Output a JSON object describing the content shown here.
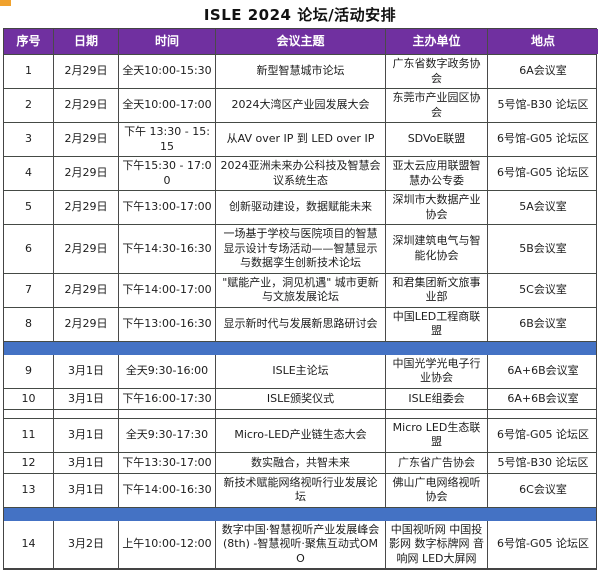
{
  "title": "ISLE 2024 论坛/活动安排",
  "colors": {
    "header_bg": "#7030A0",
    "header_text": "#FFFFFF",
    "separator_blue": "#4472C4",
    "border": "#444444",
    "corner_marker": "#F0A22E"
  },
  "table": {
    "headers": [
      "序号",
      "日期",
      "时间",
      "会议主题",
      "主办单位",
      "地点"
    ],
    "rows": [
      {
        "type": "data",
        "no": "1",
        "date": "2月29日",
        "time": "全天10:00-15:30",
        "topic": "新型智慧城市论坛",
        "organizer": "广东省数字政务协会",
        "location": "6A会议室"
      },
      {
        "type": "data",
        "no": "2",
        "date": "2月29日",
        "time": "全天10:00-17:00",
        "topic": "2024大湾区产业园发展大会",
        "organizer": "东莞市产业园区协会",
        "location": "5号馆-B30 论坛区"
      },
      {
        "type": "data",
        "no": "3",
        "date": "2月29日",
        "time": "下午 13:30 - 15:15",
        "topic": "从AV over IP 到 LED over IP",
        "organizer": "SDVoE联盟",
        "location": "6号馆-G05 论坛区"
      },
      {
        "type": "data",
        "no": "4",
        "date": "2月29日",
        "time": "下午15:30 - 17:00",
        "topic": "2024亚洲未来办公科技及智慧会议系统生态",
        "organizer": "亚太云应用联盟智慧办公专委",
        "location": "6号馆-G05 论坛区"
      },
      {
        "type": "data",
        "no": "5",
        "date": "2月29日",
        "time": "下午13:00-17:00",
        "topic": "创新驱动建设，数据赋能未来",
        "organizer": "深圳市大数据产业协会",
        "location": "5A会议室"
      },
      {
        "type": "data",
        "no": "6",
        "date": "2月29日",
        "time": "下午14:30-16:30",
        "topic": "一场基于学校与医院项目的智慧显示设计专场活动——智慧显示与数据孪生创新技术论坛",
        "organizer": "深圳建筑电气与智能化协会",
        "location": "5B会议室"
      },
      {
        "type": "data",
        "no": "7",
        "date": "2月29日",
        "time": "下午14:00-17:00",
        "topic": "\"赋能产业，洞见机遇\" 城市更新与文旅发展论坛",
        "organizer": "和君集团新文旅事业部",
        "location": "5C会议室"
      },
      {
        "type": "data",
        "no": "8",
        "date": "2月29日",
        "time": "下午13:00-16:30",
        "topic": "显示新时代与发展新思路研讨会",
        "organizer": "中国LED工程商联盟",
        "location": "6B会议室"
      },
      {
        "type": "separator"
      },
      {
        "type": "data",
        "no": "9",
        "date": "3月1日",
        "time": "全天9:30-16:00",
        "topic": "ISLE主论坛",
        "organizer": "中国光学光电子行业协会",
        "location": "6A+6B会议室"
      },
      {
        "type": "data",
        "no": "10",
        "date": "3月1日",
        "time": "下午16:00-17:30",
        "topic": "ISLE颁奖仪式",
        "organizer": "ISLE组委会",
        "location": "6A+6B会议室"
      },
      {
        "type": "spacer"
      },
      {
        "type": "data",
        "no": "11",
        "date": "3月1日",
        "time": "全天9:30-17:30",
        "topic": "Micro-LED产业链生态大会",
        "organizer": "Micro LED生态联盟",
        "location": "6号馆-G05 论坛区"
      },
      {
        "type": "data",
        "no": "12",
        "date": "3月1日",
        "time": "下午13:30-17:00",
        "topic": "数实融合，共智未来",
        "organizer": "广东省广告协会",
        "location": "5号馆-B30 论坛区"
      },
      {
        "type": "data",
        "no": "13",
        "date": "3月1日",
        "time": "下午14:00-16:30",
        "topic": "新技术赋能网络视听行业发展论坛",
        "organizer": "佛山广电网络视听协会",
        "location": "6C会议室"
      },
      {
        "type": "separator"
      },
      {
        "type": "data",
        "no": "14",
        "date": "3月2日",
        "time": "上午10:00-12:00",
        "topic": "数字中国·智慧视听产业发展峰会 (8th) -智慧视听·聚焦互动式OMO",
        "organizer": "中国视听网  中国投影网  数字标牌网 音响网 LED大屏网",
        "location": "6号馆-G05 论坛区"
      }
    ]
  }
}
